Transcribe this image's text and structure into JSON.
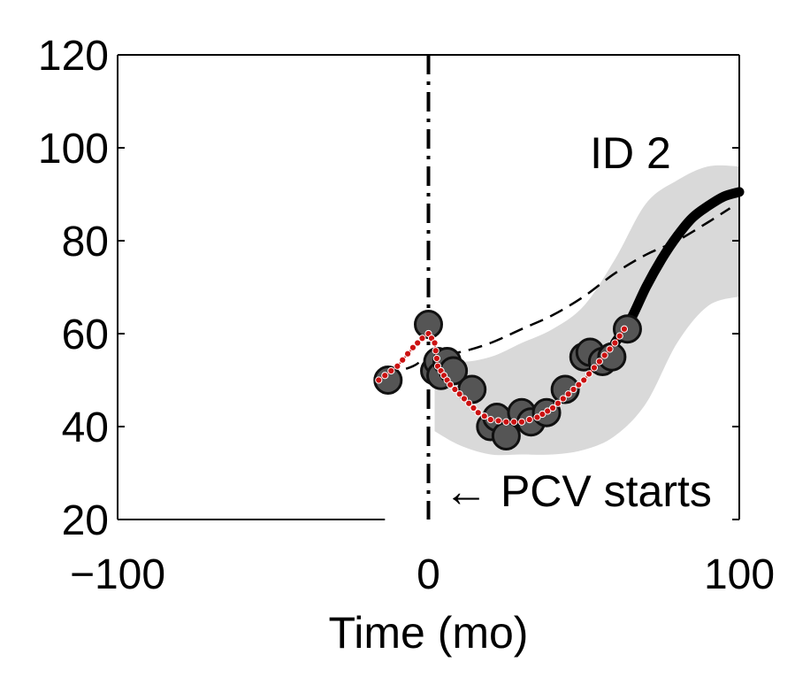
{
  "chart_data": {
    "type": "line",
    "panel_label": "ID 2",
    "xlabel": "Time (mo)",
    "ylabel": "",
    "xlim": [
      -100,
      100
    ],
    "ylim": [
      20,
      120
    ],
    "xticks": [
      -100,
      0,
      100
    ],
    "yticks": [
      20,
      40,
      60,
      80,
      100,
      120
    ],
    "xtick_labels": [
      "−100",
      "0",
      "100"
    ],
    "ytick_labels": [
      "20",
      "40",
      "60",
      "80",
      "100",
      "120"
    ],
    "grid": false,
    "box": "top-right-left",
    "annotation": {
      "text": "←  PCV starts",
      "x": 5,
      "y": 27
    },
    "vertical_line": {
      "x": 0,
      "style": "dash-dot"
    },
    "series": [
      {
        "role": "confidence_band",
        "color": "#d9d9d9",
        "x": [
          2,
          10,
          20,
          30,
          40,
          50,
          60,
          70,
          80,
          90,
          100
        ],
        "lower": [
          39,
          36,
          34,
          34,
          34,
          35,
          38,
          45,
          58,
          66,
          68
        ],
        "upper": [
          56,
          54,
          55,
          58,
          61,
          66,
          76,
          88,
          93,
          96,
          96
        ]
      },
      {
        "role": "population_mean",
        "style": "dashed",
        "color": "#000000",
        "x": [
          -14,
          -5,
          0,
          10,
          20,
          30,
          40,
          50,
          60,
          70,
          80,
          90,
          97
        ],
        "y": [
          51,
          53,
          55,
          56,
          58,
          61,
          64,
          68,
          73,
          77,
          80,
          84,
          87
        ]
      },
      {
        "role": "individual_fit",
        "style": "solid-thick",
        "color": "#000000",
        "x": [
          60,
          65,
          70,
          75,
          80,
          85,
          90,
          95,
          100
        ],
        "y": [
          58,
          63,
          70,
          76,
          81,
          85,
          87.5,
          89.5,
          90.5
        ]
      },
      {
        "role": "observations",
        "marker": "circle",
        "color": "#555555",
        "x": [
          -13,
          0,
          2,
          3,
          4,
          6,
          8,
          14,
          20,
          22,
          25,
          30,
          33,
          38,
          44,
          50,
          52,
          56,
          59,
          64
        ],
        "y": [
          50,
          62,
          52,
          54,
          51,
          54,
          52,
          48,
          40,
          42,
          38,
          43,
          41,
          43,
          48,
          55,
          56,
          54,
          55,
          61
        ]
      },
      {
        "role": "interpolated_trace",
        "style": "dotted-markers",
        "color": "#cc1111",
        "x": [
          -16,
          -10,
          -5,
          -2,
          0,
          2,
          3,
          5,
          7,
          10,
          13,
          16,
          20,
          25,
          30,
          35,
          40,
          45,
          50,
          55,
          60,
          63
        ],
        "y": [
          50,
          53,
          57,
          59,
          60,
          58,
          53,
          51,
          49,
          47,
          45,
          43,
          41.5,
          41,
          41,
          42,
          44,
          47,
          50,
          54,
          58,
          61
        ]
      }
    ]
  }
}
